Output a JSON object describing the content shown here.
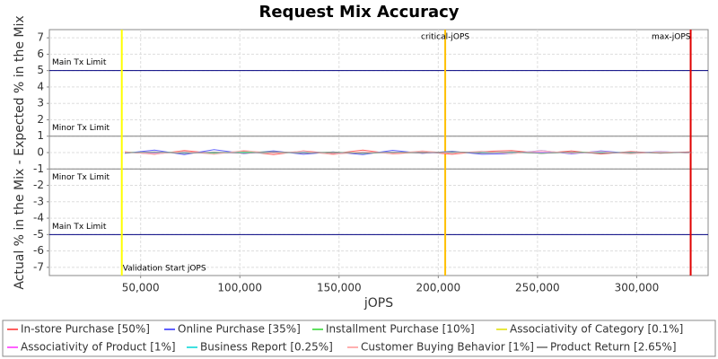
{
  "chart_data": {
    "type": "line",
    "title": "Request Mix Accuracy",
    "x_label": "jOPS",
    "y_label": "Actual % in the Mix - Expected % in the Mix",
    "xlim": [
      4000,
      336000
    ],
    "ylim": [
      -7.5,
      7.5
    ],
    "xticks": [
      {
        "value": 50000,
        "label": "50,000"
      },
      {
        "value": 100000,
        "label": "100,000"
      },
      {
        "value": 150000,
        "label": "150,000"
      },
      {
        "value": 200000,
        "label": "200,000"
      },
      {
        "value": 250000,
        "label": "250,000"
      },
      {
        "value": 300000,
        "label": "300,000"
      }
    ],
    "yticks": [
      -7,
      -6,
      -5,
      -4,
      -3,
      -2,
      -1,
      0,
      1,
      2,
      3,
      4,
      5,
      6,
      7
    ],
    "grid": true,
    "x": [
      42000,
      57000,
      72000,
      87000,
      102000,
      117000,
      132000,
      147000,
      162000,
      177000,
      192000,
      207000,
      222000,
      237000,
      252000,
      267000,
      282000,
      297000,
      312000,
      327000
    ],
    "series": [
      {
        "name": "In-store Purchase [50%]",
        "color": "#ff6060",
        "values": [
          0.05,
          -0.1,
          0.12,
          -0.05,
          0.08,
          -0.12,
          0.1,
          -0.06,
          0.15,
          -0.08,
          0.05,
          -0.1,
          0.07,
          0.12,
          -0.05,
          0.1,
          -0.09,
          0.06,
          -0.04,
          0.05
        ]
      },
      {
        "name": "Online Purchase [35%]",
        "color": "#6060ff",
        "values": [
          -0.04,
          0.15,
          -0.12,
          0.18,
          -0.06,
          0.1,
          -0.1,
          0.04,
          -0.12,
          0.14,
          -0.05,
          0.08,
          -0.1,
          -0.06,
          0.12,
          -0.08,
          0.1,
          -0.05,
          0.06,
          -0.03
        ]
      },
      {
        "name": "Installment Purchase [10%]",
        "color": "#60e060",
        "values": [
          0.02,
          -0.03,
          0.05,
          -0.04,
          0.03,
          0.04,
          -0.02,
          0.03,
          -0.05,
          0.02,
          -0.03,
          0.04,
          -0.02,
          0.03,
          -0.04,
          0.02,
          0.03,
          -0.02,
          0.02,
          -0.01
        ]
      },
      {
        "name": "Associativity of Category [0.1%]",
        "color": "#e8e840",
        "values": [
          0.0,
          0.01,
          -0.01,
          0.0,
          0.01,
          0.0,
          -0.01,
          0.0,
          0.01,
          -0.01,
          0.0,
          0.01,
          0.0,
          -0.01,
          0.0,
          0.01,
          0.0,
          0.0,
          -0.01,
          0.0
        ]
      },
      {
        "name": "Associativity of Product [1%]",
        "color": "#ff60ff",
        "values": [
          0.01,
          -0.02,
          0.02,
          0.0,
          -0.02,
          0.01,
          0.02,
          -0.01,
          0.0,
          0.02,
          -0.02,
          0.01,
          0.0,
          -0.01,
          0.02,
          0.0,
          -0.02,
          0.01,
          0.0,
          0.01
        ]
      },
      {
        "name": "Business Report [0.25%]",
        "color": "#40e0e0",
        "values": [
          0.0,
          0.02,
          -0.01,
          0.01,
          0.0,
          -0.02,
          0.01,
          0.0,
          -0.01,
          0.02,
          0.0,
          -0.01,
          0.01,
          0.0,
          -0.02,
          0.01,
          0.0,
          0.01,
          -0.01,
          0.0
        ]
      },
      {
        "name": "Customer Buying Behavior [1%]",
        "color": "#ffb0b0",
        "values": [
          0.03,
          -0.08,
          0.06,
          -0.1,
          0.12,
          -0.04,
          0.08,
          -0.12,
          0.05,
          -0.06,
          0.1,
          -0.05,
          0.09,
          -0.07,
          0.11,
          -0.04,
          0.06,
          -0.08,
          0.05,
          -0.02
        ]
      },
      {
        "name": "Product Return [2.65%]",
        "color": "#909090",
        "values": [
          -0.02,
          0.04,
          -0.05,
          0.03,
          -0.04,
          0.05,
          -0.03,
          0.02,
          -0.04,
          0.03,
          -0.02,
          0.05,
          -0.03,
          0.04,
          -0.05,
          0.03,
          -0.04,
          0.02,
          -0.03,
          0.02
        ]
      }
    ],
    "hlines": [
      {
        "value": 5,
        "label": "Main Tx Limit",
        "color": "#000080",
        "label_position": "above"
      },
      {
        "value": 1,
        "label": "Minor Tx Limit",
        "color": "#808080",
        "label_position": "above"
      },
      {
        "value": -1,
        "label": "Minor Tx Limit",
        "color": "#808080",
        "label_position": "below"
      },
      {
        "value": -5,
        "label": "Main Tx Limit",
        "color": "#000080",
        "label_position": "above"
      }
    ],
    "vlines": [
      {
        "value": 40500,
        "label": "Validation Start jOPS",
        "color": "#ffff00",
        "label_position": "bottom"
      },
      {
        "value": 203500,
        "label": "critical-jOPS",
        "color": "#ffc000",
        "label_position": "top"
      },
      {
        "value": 327200,
        "label": "max-jOPS",
        "color": "#e00000",
        "label_position": "top"
      }
    ]
  }
}
